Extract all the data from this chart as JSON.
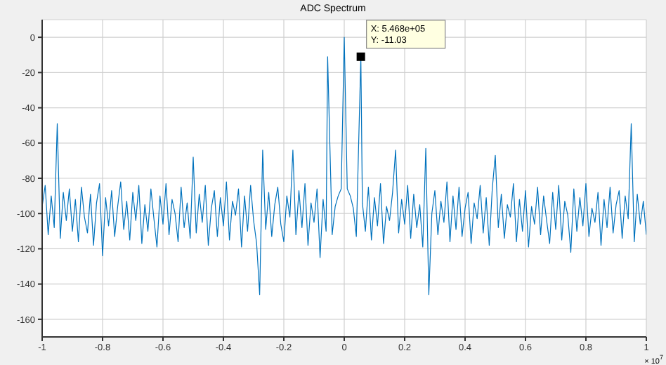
{
  "chart_data": {
    "type": "line",
    "title": "ADC Spectrum",
    "x": [
      -1,
      -0.99,
      -0.98,
      -0.97,
      -0.96,
      -0.95,
      -0.94,
      -0.93,
      -0.92,
      -0.91,
      -0.9,
      -0.89,
      -0.88,
      -0.87,
      -0.86,
      -0.85,
      -0.84,
      -0.83,
      -0.82,
      -0.81,
      -0.8,
      -0.79,
      -0.78,
      -0.77,
      -0.76,
      -0.75,
      -0.74,
      -0.73,
      -0.72,
      -0.71,
      -0.7,
      -0.69,
      -0.68,
      -0.67,
      -0.66,
      -0.65,
      -0.64,
      -0.63,
      -0.62,
      -0.61,
      -0.6,
      -0.59,
      -0.58,
      -0.57,
      -0.56,
      -0.55,
      -0.54,
      -0.53,
      -0.52,
      -0.51,
      -0.5,
      -0.49,
      -0.48,
      -0.47,
      -0.46,
      -0.45,
      -0.44,
      -0.43,
      -0.42,
      -0.41,
      -0.4,
      -0.39,
      -0.38,
      -0.37,
      -0.36,
      -0.35,
      -0.34,
      -0.33,
      -0.32,
      -0.31,
      -0.3,
      -0.29,
      -0.28,
      -0.27,
      -0.26,
      -0.25,
      -0.24,
      -0.23,
      -0.22,
      -0.21,
      -0.2,
      -0.19,
      -0.18,
      -0.17,
      -0.16,
      -0.15,
      -0.14,
      -0.13,
      -0.12,
      -0.11,
      -0.1,
      -0.09,
      -0.08,
      -0.07,
      -0.06,
      -0.055,
      -0.04,
      -0.03,
      -0.02,
      -0.01,
      0,
      0.01,
      0.02,
      0.03,
      0.04,
      0.055,
      0.06,
      0.07,
      0.08,
      0.09,
      0.1,
      0.11,
      0.12,
      0.13,
      0.14,
      0.15,
      0.16,
      0.17,
      0.18,
      0.19,
      0.2,
      0.21,
      0.22,
      0.23,
      0.24,
      0.25,
      0.26,
      0.27,
      0.28,
      0.29,
      0.3,
      0.31,
      0.32,
      0.33,
      0.34,
      0.35,
      0.36,
      0.37,
      0.38,
      0.39,
      0.4,
      0.41,
      0.42,
      0.43,
      0.44,
      0.45,
      0.46,
      0.47,
      0.48,
      0.49,
      0.5,
      0.51,
      0.52,
      0.53,
      0.54,
      0.55,
      0.56,
      0.57,
      0.58,
      0.59,
      0.6,
      0.61,
      0.62,
      0.63,
      0.64,
      0.65,
      0.66,
      0.67,
      0.68,
      0.69,
      0.7,
      0.71,
      0.72,
      0.73,
      0.74,
      0.75,
      0.76,
      0.77,
      0.78,
      0.79,
      0.8,
      0.81,
      0.82,
      0.83,
      0.84,
      0.85,
      0.86,
      0.87,
      0.88,
      0.89,
      0.9,
      0.91,
      0.92,
      0.93,
      0.94,
      0.95,
      0.96,
      0.97,
      0.98,
      0.99,
      1
    ],
    "series": [
      {
        "color": "#0072bd",
        "values": [
          -96,
          -84,
          -112,
          -90,
          -108,
          -49,
          -114,
          -88,
          -104,
          -86,
          -110,
          -92,
          -116,
          -85,
          -102,
          -111,
          -89,
          -118,
          -94,
          -83,
          -124,
          -91,
          -107,
          -87,
          -113,
          -96,
          -82,
          -109,
          -93,
          -115,
          -88,
          -104,
          -84,
          -117,
          -95,
          -110,
          -86,
          -103,
          -119,
          -90,
          -106,
          -83,
          -112,
          -92,
          -100,
          -116,
          -85,
          -108,
          -94,
          -114,
          -68,
          -111,
          -89,
          -105,
          -84,
          -118,
          -97,
          -87,
          -113,
          -91,
          -107,
          -82,
          -115,
          -93,
          -101,
          -86,
          -119,
          -90,
          -110,
          -84,
          -104,
          -117,
          -146,
          -64,
          -109,
          -88,
          -113,
          -95,
          -85,
          -106,
          -116,
          -90,
          -102,
          -64,
          -112,
          -87,
          -108,
          -83,
          -118,
          -94,
          -105,
          -86,
          -125,
          -92,
          -110,
          -11,
          -112,
          -96,
          -90,
          -86,
          0,
          -86,
          -90,
          -97,
          -113,
          -11.03,
          -94,
          -110,
          -85,
          -115,
          -91,
          -107,
          -83,
          -117,
          -96,
          -104,
          -88,
          -64,
          -111,
          -92,
          -106,
          -84,
          -114,
          -89,
          -108,
          -95,
          -119,
          -63,
          -146,
          -100,
          -87,
          -112,
          -93,
          -105,
          -82,
          -116,
          -90,
          -109,
          -85,
          -113,
          -97,
          -88,
          -117,
          -94,
          -103,
          -84,
          -111,
          -91,
          -118,
          -86,
          -67,
          -108,
          -89,
          -114,
          -95,
          -102,
          -83,
          -116,
          -92,
          -110,
          -87,
          -119,
          -96,
          -106,
          -85,
          -112,
          -90,
          -104,
          -117,
          -88,
          -109,
          -84,
          -115,
          -93,
          -101,
          -122,
          -86,
          -110,
          -91,
          -107,
          -83,
          -113,
          -97,
          -105,
          -88,
          -118,
          -92,
          -108,
          -85,
          -111,
          -95,
          -87,
          -114,
          -90,
          -103,
          -49,
          -116,
          -89,
          -106,
          -93,
          -112
        ]
      }
    ],
    "xlim": [
      -1,
      1
    ],
    "xticks": [
      -1,
      -0.8,
      -0.6,
      -0.4,
      -0.2,
      0,
      0.2,
      0.4,
      0.6,
      0.8,
      1
    ],
    "ylim": [
      -170,
      10
    ],
    "yticks": [
      -160,
      -140,
      -120,
      -100,
      -80,
      -60,
      -40,
      -20,
      0
    ],
    "grid": true,
    "marker": "none",
    "line_style": "solid",
    "annotations": [
      {
        "text": "X: 5.468e+05\nY: -11.03",
        "x": 0.055,
        "y": -11.03
      },
      "× 10$^{7}$"
    ]
  }
}
